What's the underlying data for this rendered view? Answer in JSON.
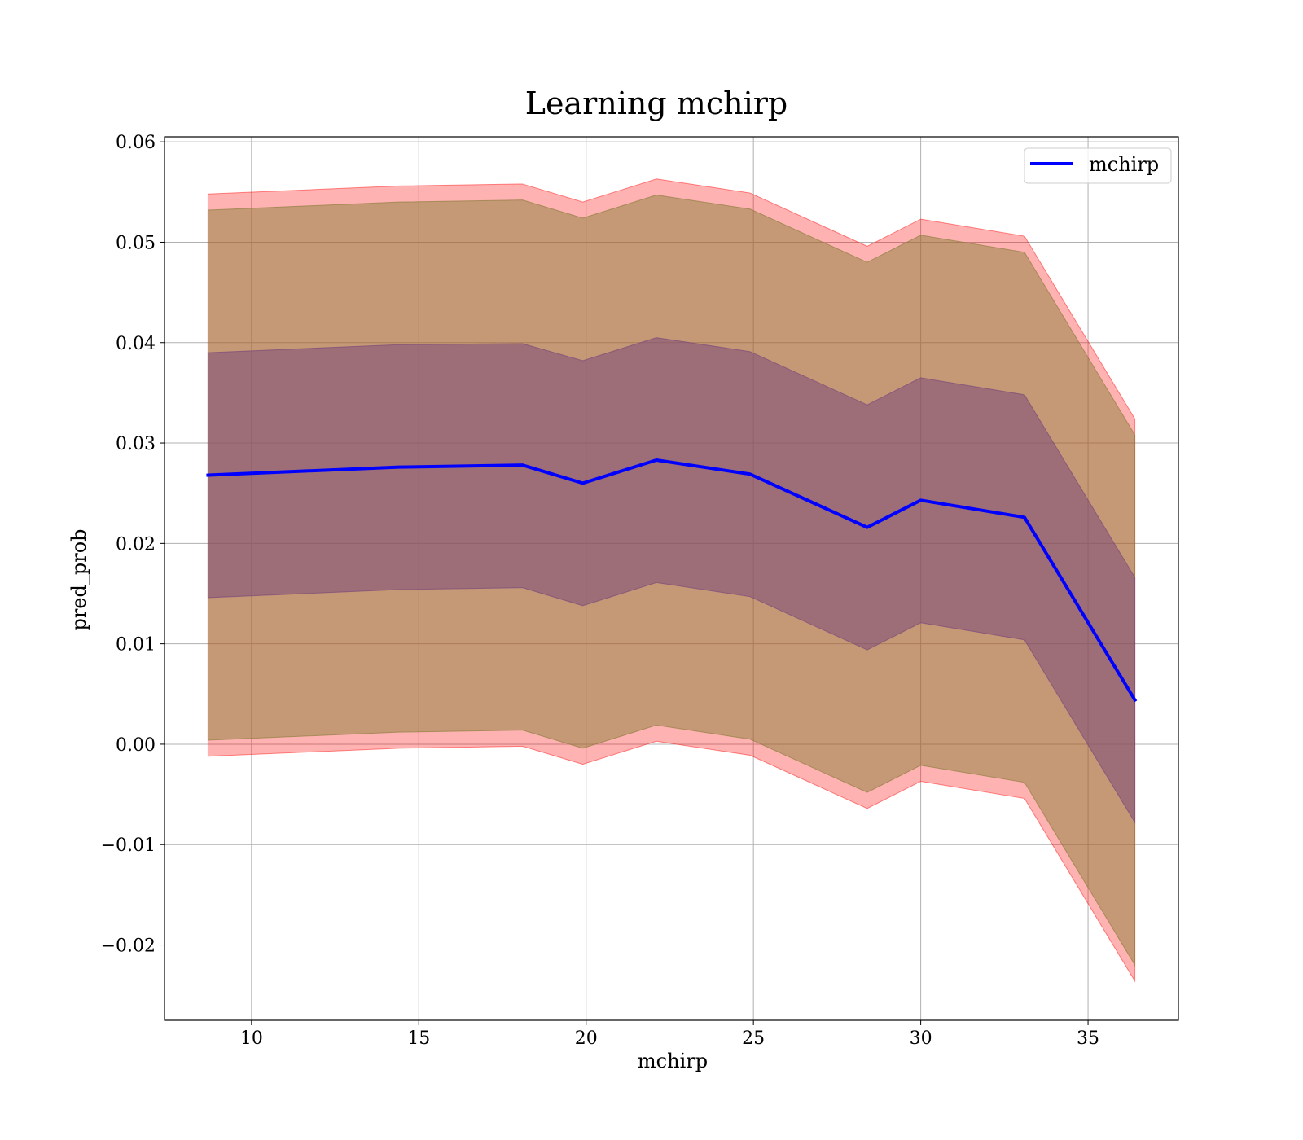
{
  "chart_data": {
    "type": "line",
    "title": "Learning mchirp",
    "xlabel": "mchirp",
    "ylabel": "pred_prob",
    "xlim": [
      7.4,
      37.7
    ],
    "ylim": [
      -0.0275,
      0.0605
    ],
    "xticks": [
      10,
      15,
      20,
      25,
      30,
      35
    ],
    "xtick_labels": [
      "10",
      "15",
      "20",
      "25",
      "30",
      "35"
    ],
    "yticks": [
      -0.02,
      -0.01,
      0.0,
      0.01,
      0.02,
      0.03,
      0.04,
      0.05,
      0.06
    ],
    "ytick_labels": [
      "−0.02",
      "−0.01",
      "0.00",
      "0.01",
      "0.02",
      "0.03",
      "0.04",
      "0.05",
      "0.06"
    ],
    "grid": true,
    "legend": {
      "placement": "top-right",
      "entries": [
        "mchirp"
      ]
    },
    "x": [
      8.7,
      14.4,
      18.1,
      19.9,
      22.1,
      24.9,
      28.4,
      30.0,
      33.1,
      36.4
    ],
    "series": [
      {
        "name": "mchirp",
        "color": "#0000ff",
        "values": [
          0.0268,
          0.0276,
          0.0278,
          0.026,
          0.0283,
          0.0269,
          0.0216,
          0.0243,
          0.0226,
          0.0044
        ]
      }
    ],
    "bands": [
      {
        "color": "#ff0000",
        "opacity": 0.3,
        "upper": [
          0.0548,
          0.0556,
          0.0558,
          0.054,
          0.0563,
          0.0549,
          0.0496,
          0.0523,
          0.0506,
          0.0324
        ],
        "lower": [
          -0.0012,
          -0.0004,
          -0.0002,
          -0.002,
          0.0003,
          -0.0011,
          -0.0064,
          -0.0037,
          -0.0054,
          -0.0236
        ]
      },
      {
        "color": "#8b7d3a",
        "opacity": 0.5,
        "upper": [
          0.0532,
          0.054,
          0.0542,
          0.0524,
          0.0547,
          0.0533,
          0.048,
          0.0507,
          0.049,
          0.0308
        ],
        "lower": [
          0.0004,
          0.0012,
          0.0014,
          -0.0004,
          0.0019,
          0.0005,
          -0.0048,
          -0.0021,
          -0.0038,
          -0.022
        ]
      },
      {
        "color": "#7b4a7a",
        "opacity": 0.55,
        "upper": [
          0.039,
          0.0398,
          0.0399,
          0.0382,
          0.0405,
          0.0391,
          0.0338,
          0.0365,
          0.0348,
          0.0166
        ],
        "lower": [
          0.0146,
          0.0154,
          0.0156,
          0.0138,
          0.0161,
          0.0147,
          0.0094,
          0.0121,
          0.0104,
          -0.0078
        ]
      }
    ]
  }
}
